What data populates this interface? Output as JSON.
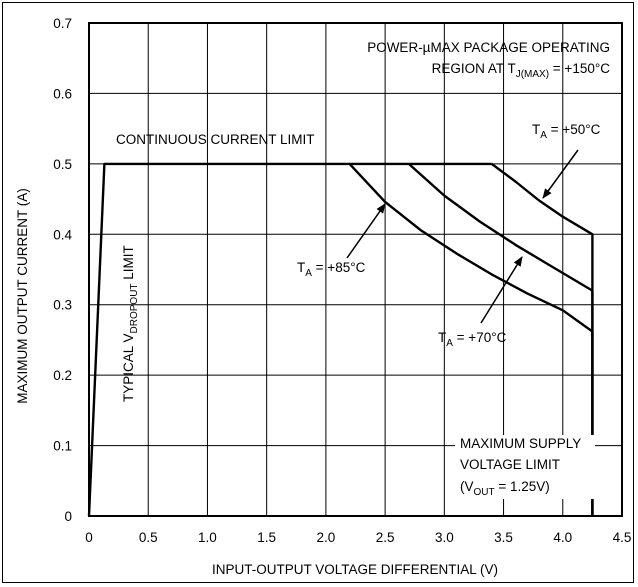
{
  "chart_data": {
    "type": "line",
    "xlabel": "INPUT-OUTPUT VOLTAGE DIFFERENTIAL (V)",
    "ylabel": "MAXIMUM OUTPUT CURRENT (A)",
    "xlim": [
      0,
      4.5
    ],
    "ylim": [
      0,
      0.7
    ],
    "x_ticks": [
      "0",
      "0.5",
      "1.0",
      "1.5",
      "2.0",
      "2.5",
      "3.0",
      "3.5",
      "4.0",
      "4.5"
    ],
    "y_ticks": [
      "0",
      "0.1",
      "0.2",
      "0.3",
      "0.4",
      "0.5",
      "0.6",
      "0.7"
    ],
    "grid": true,
    "series": [
      {
        "key": "limit",
        "x": [
          0,
          0.13,
          0.13,
          3.4
        ],
        "y": [
          0,
          0.5,
          0.5,
          0.5
        ]
      },
      {
        "key": "t50",
        "x": [
          3.4,
          3.6,
          3.8,
          4.0,
          4.25,
          4.25
        ],
        "y": [
          0.5,
          0.475,
          0.448,
          0.425,
          0.4,
          0
        ]
      },
      {
        "key": "t70",
        "x": [
          2.7,
          3.0,
          3.3,
          3.6,
          3.9,
          4.25,
          4.25
        ],
        "y": [
          0.5,
          0.455,
          0.418,
          0.385,
          0.355,
          0.32,
          0
        ]
      },
      {
        "key": "t85",
        "x": [
          2.2,
          2.5,
          2.8,
          3.1,
          3.4,
          3.7,
          4.0,
          4.25,
          4.25
        ],
        "y": [
          0.5,
          0.446,
          0.406,
          0.373,
          0.343,
          0.316,
          0.292,
          0.262,
          0
        ]
      }
    ],
    "annotations": {
      "region_line1": "POWER-µMAX PACKAGE OPERATING",
      "region_line2_pre": "REGION AT T",
      "region_line2_sub": "J(MAX)",
      "region_line2_post": " = +150°C",
      "continuous": "CONTINUOUS CURRENT LIMIT",
      "dropout_pre": "TYPICAL V",
      "dropout_sub": "DROPOUT",
      "dropout_post": " LIMIT",
      "t50_pre": "T",
      "t50_sub": "A",
      "t50_post": " = +50°C",
      "t85_pre": "T",
      "t85_sub": "A",
      "t85_post": " = +85°C",
      "t70_pre": "T",
      "t70_sub": "A",
      "t70_post": " = +70°C",
      "supply_line1": "MAXIMUM SUPPLY",
      "supply_line2": "VOLTAGE LIMIT",
      "supply_line3_pre": "(V",
      "supply_line3_sub": "OUT",
      "supply_line3_post": " = 1.25V)"
    }
  }
}
